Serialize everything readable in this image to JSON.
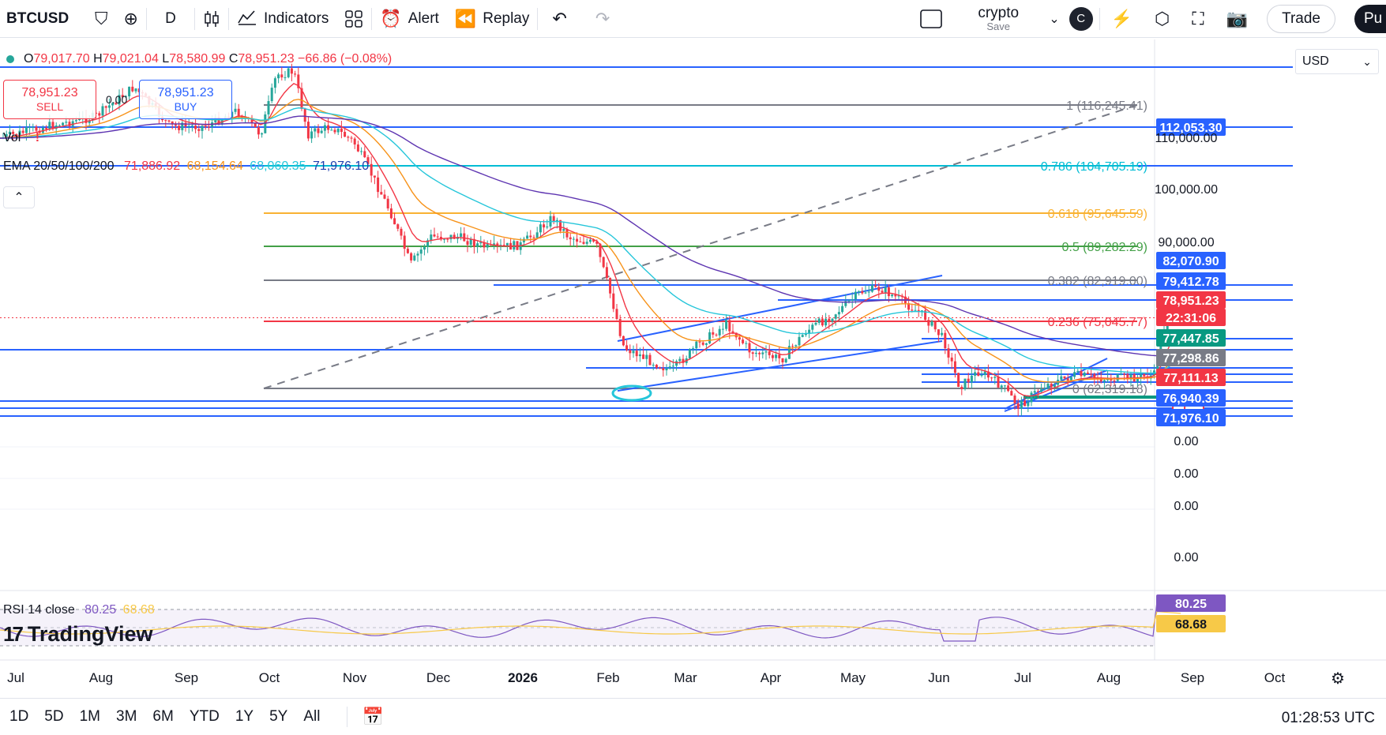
{
  "toolbar": {
    "symbol": "BTCUSD",
    "interval": "D",
    "indicators_label": "Indicators",
    "alert_label": "Alert",
    "replay_label": "Replay",
    "layout_name": "crypto",
    "layout_status": "Save",
    "avatar_letter": "C",
    "trade_label": "Trade",
    "publish_label": "Pu",
    "icons": [
      "favorite-icon",
      "add-symbol-icon",
      "candles-icon",
      "indicators-icon",
      "templates-icon",
      "alert-icon",
      "replay-icon",
      "undo-icon",
      "redo-icon",
      "layout-icon",
      "chevron-down-icon",
      "quick-search-icon",
      "settings-icon",
      "fullscreen-icon",
      "camera-icon"
    ]
  },
  "legend": {
    "open_label": "O",
    "open": "79,017.70",
    "high_label": "H",
    "high": "79,021.04",
    "low_label": "L",
    "low": "78,580.99",
    "close_label": "C",
    "close": "78,951.23",
    "change": "−66.86 (−0.08%)",
    "sell_price": "78,951.23",
    "sell_label": "SELL",
    "buy_price": "78,951.23",
    "buy_label": "BUY",
    "mini_value": "0.00",
    "vol_label": "Vol",
    "vol_alert": "!",
    "ema_label": "EMA 20/50/100/200",
    "ema20": "71,886.92",
    "ema50": "68,154.64",
    "ema100": "68,060.35",
    "ema200": "71,976.10",
    "rsi_label": "RSI 14 close",
    "rsi_value": "80.25",
    "rsi_ma": "68.68"
  },
  "currency": "USD",
  "colors": {
    "up": "#26a69a",
    "down": "#f23645",
    "hline": "#2962ff",
    "ema20": "#f23645",
    "ema50": "#f7931a",
    "ema100": "#26c6da",
    "ema200": "#5e35b1",
    "fib_gray": "#787b86",
    "fib_teal": "#00bcd4",
    "fib_yellow": "#f9b233",
    "fib_green": "#43a047",
    "fib_red": "#f23645",
    "rsi_line": "#7e57c2",
    "rsi_ma": "#f7c948"
  },
  "fib_labels": [
    {
      "text": "1 (116,245.41)",
      "color": "#787b86"
    },
    {
      "text": "0.786 (104,705.19)",
      "color": "#00bcd4"
    },
    {
      "text": "0.618 (95,645.59)",
      "color": "#f9b233"
    },
    {
      "text": "0.5 (89,282.29)",
      "color": "#43a047"
    },
    {
      "text": "0.382 (82,919.00)",
      "color": "#787b86"
    },
    {
      "text": "0.236 (75,045.77)",
      "color": "#f23645"
    },
    {
      "text": "0 (62,319.18)",
      "color": "#787b86"
    }
  ],
  "price_scale": [
    {
      "text": "112,053.30",
      "type": "badge",
      "bg": "#2962ff"
    },
    {
      "text": "110,000.00",
      "type": "tick"
    },
    {
      "text": "100,000.00",
      "type": "tick"
    },
    {
      "text": "90,000.00",
      "type": "tick"
    },
    {
      "text": "82,070.90",
      "type": "badge",
      "bg": "#2962ff"
    },
    {
      "text": "79,412.78",
      "type": "badge",
      "bg": "#2962ff"
    },
    {
      "text": "78,951.23",
      "type": "badge",
      "bg": "#f23645"
    },
    {
      "text": "22:31:06",
      "type": "badge",
      "bg": "#f23645"
    },
    {
      "text": "77,447.85",
      "type": "badge",
      "bg": "#089981"
    },
    {
      "text": "77,298.86",
      "type": "badge",
      "bg": "#787b86"
    },
    {
      "text": "77,111.13",
      "type": "badge",
      "bg": "#f23645"
    },
    {
      "text": "76,940.39",
      "type": "badge",
      "bg": "#2962ff"
    },
    {
      "text": "71,976.10",
      "type": "badge",
      "bg": "#2962ff"
    },
    {
      "text": "0.00",
      "type": "tick"
    },
    {
      "text": "0.00",
      "type": "tick"
    },
    {
      "text": "0.00",
      "type": "tick"
    },
    {
      "text": "0.00",
      "type": "tick"
    },
    {
      "text": "80.25",
      "type": "badge",
      "bg": "#7e57c2"
    },
    {
      "text": "68.68",
      "type": "badge",
      "bg": "#f7c948",
      "fg": "#131722"
    }
  ],
  "time_axis": [
    "Jul",
    "Aug",
    "Sep",
    "Oct",
    "Nov",
    "Dec",
    "2026",
    "Feb",
    "Mar",
    "Apr",
    "May",
    "Jun",
    "Jul",
    "Aug",
    "Sep",
    "Oct"
  ],
  "watermark": "TradingView",
  "ranges": [
    "1D",
    "5D",
    "1M",
    "3M",
    "6M",
    "YTD",
    "1Y",
    "5Y",
    "All"
  ],
  "clock": "01:28:53 UTC",
  "chart_data": {
    "type": "candlestick",
    "symbol": "BTCUSD",
    "interval": "D",
    "x_range": [
      "Jul",
      "Oct"
    ],
    "y_range": [
      62000,
      120000
    ],
    "price_points": [
      {
        "x": "Jul",
        "y": 108000
      },
      {
        "x": "Aug",
        "y": 114000
      },
      {
        "x": "Sep",
        "y": 112000
      },
      {
        "x": "Oct",
        "y": 122000
      },
      {
        "x": "Nov",
        "y": 110000
      },
      {
        "x": "Dec",
        "y": 88000
      },
      {
        "x": "2026",
        "y": 91000
      },
      {
        "x": "Feb",
        "y": 70000
      },
      {
        "x": "Mar",
        "y": 66000
      },
      {
        "x": "Apr",
        "y": 68000
      },
      {
        "x": "May",
        "y": 80000
      },
      {
        "x": "Jun",
        "y": 67000
      },
      {
        "x": "Jul",
        "y": 66000
      },
      {
        "x": "Aug",
        "y": 70000
      },
      {
        "x": "Sep",
        "y": 78951.23
      }
    ],
    "rsi": {
      "value": 80.25,
      "ma": 68.68
    }
  }
}
